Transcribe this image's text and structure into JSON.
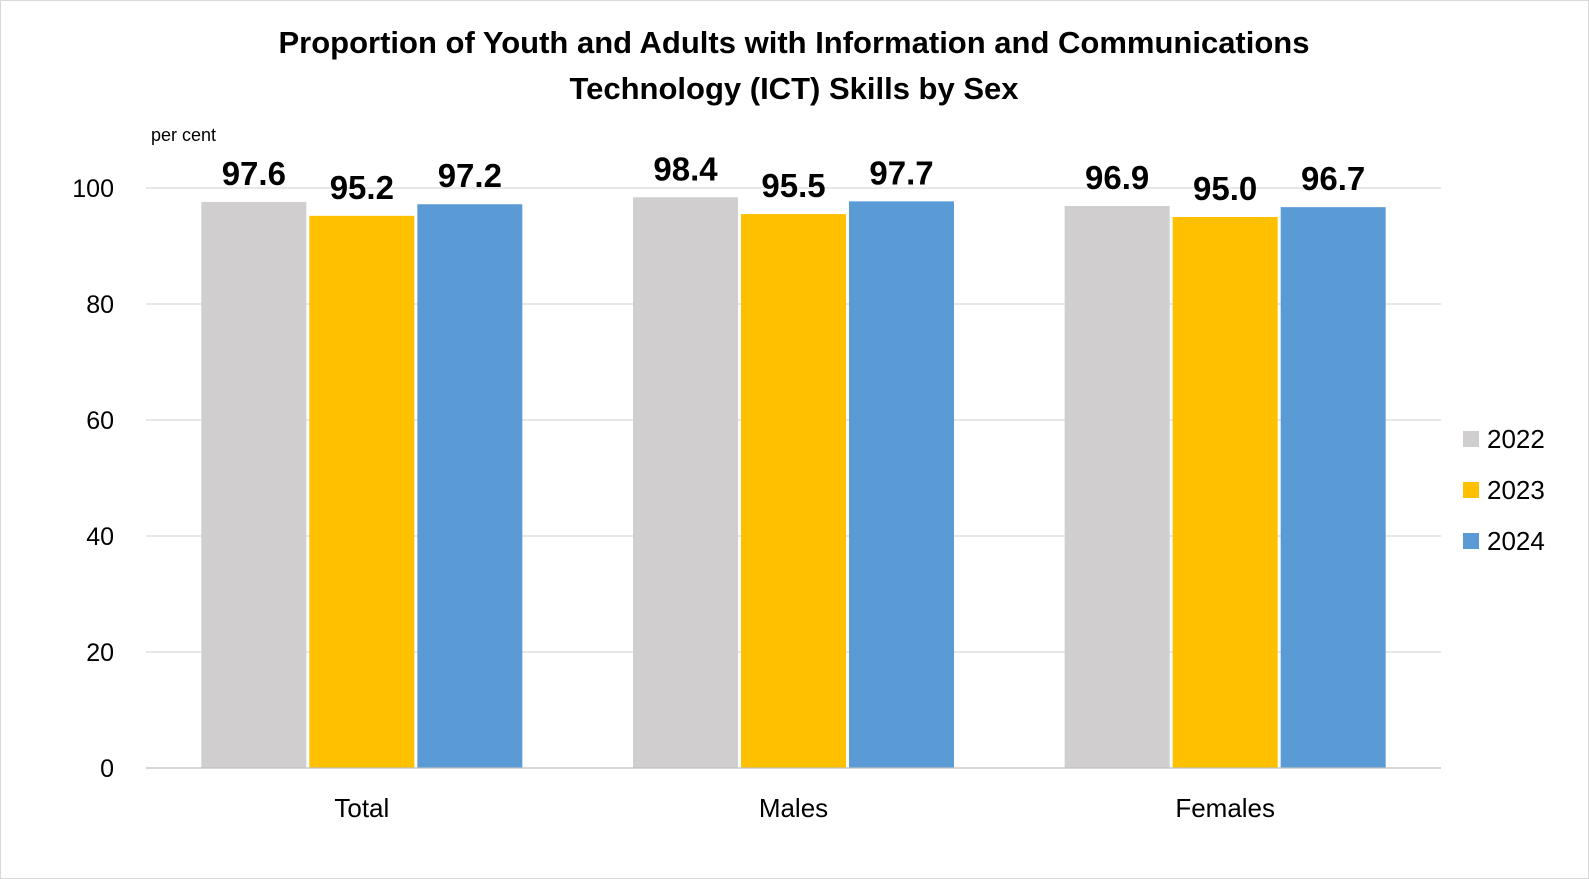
{
  "chart_data": {
    "type": "bar",
    "title_lines": [
      "Proportion of Youth and Adults with Information and Communications",
      "Technology (ICT) Skills by Sex"
    ],
    "ylabel": "per cent",
    "xlabel": "",
    "ylim": [
      0,
      100
    ],
    "yticks": [
      "0",
      "20",
      "40",
      "60",
      "80",
      "100"
    ],
    "ytick_values": [
      0,
      20,
      40,
      60,
      80,
      100
    ],
    "categories": [
      "Total",
      "Males",
      "Females"
    ],
    "series": [
      {
        "name": "2022",
        "color": "#d0cece",
        "values": [
          97.6,
          98.4,
          96.9
        ],
        "labels": [
          "97.6",
          "98.4",
          "96.9"
        ]
      },
      {
        "name": "2023",
        "color": "#ffc000",
        "values": [
          95.2,
          95.5,
          95.0
        ],
        "labels": [
          "95.2",
          "95.5",
          "95.0"
        ]
      },
      {
        "name": "2024",
        "color": "#5b9bd5",
        "values": [
          97.2,
          97.7,
          96.7
        ],
        "labels": [
          "97.2",
          "97.7",
          "96.7"
        ]
      }
    ],
    "grid": true,
    "legend_position": "right"
  }
}
